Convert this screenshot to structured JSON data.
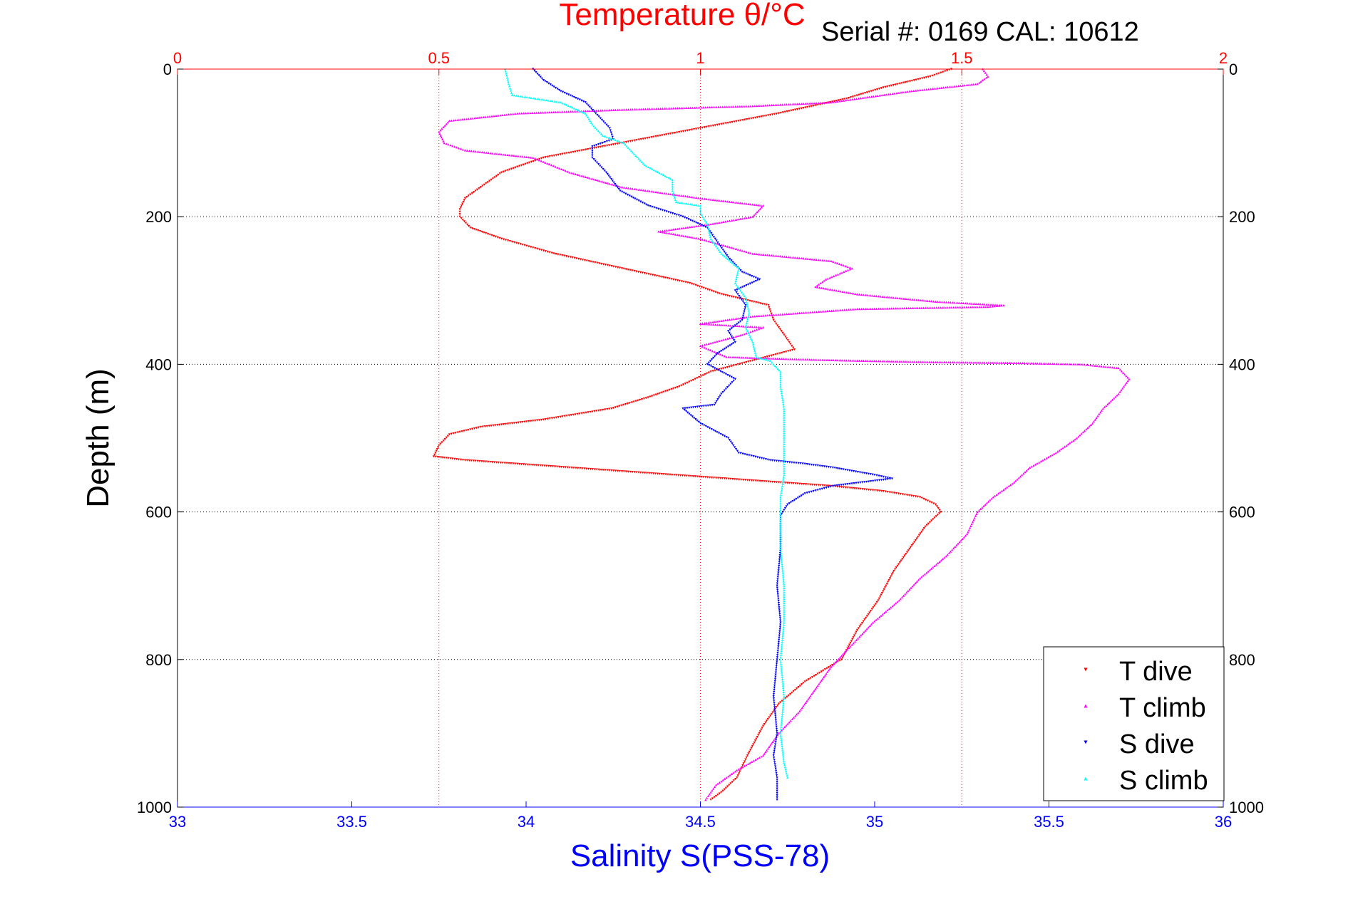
{
  "header": {
    "serial_text": "Serial #: 0169 CAL: 10612"
  },
  "colors": {
    "temp_dive": "#ff0000",
    "temp_climb": "#ff00ff",
    "sal_dive": "#0000ff",
    "sal_climb": "#00ffff",
    "temp_axis": "#ff0000",
    "sal_axis": "#0000ff",
    "grid_depth": "#000000",
    "grid_temp": "#ff0000"
  },
  "chart_data": {
    "type": "scatter",
    "title": "Temperature θ/°C",
    "xlabel": "Salinity S(PSS-78)",
    "ylabel": "Depth (m)",
    "temperature_axis": {
      "label": "Temperature θ/°C",
      "position": "top",
      "range": [
        0,
        2
      ],
      "ticks": [
        0,
        0.5,
        1,
        1.5,
        2
      ],
      "tick_labels": [
        "0",
        "0.5",
        "1",
        "1.5",
        "2"
      ]
    },
    "salinity_axis": {
      "label": "Salinity S(PSS-78)",
      "position": "bottom",
      "range": [
        33,
        36
      ],
      "ticks": [
        33,
        33.5,
        34,
        34.5,
        35,
        35.5,
        36
      ],
      "tick_labels": [
        "33",
        "33.5",
        "34",
        "34.5",
        "35",
        "35.5",
        "36"
      ]
    },
    "depth_axis": {
      "label": "Depth (m)",
      "range": [
        0,
        1000
      ],
      "reversed": true,
      "ticks": [
        0,
        200,
        400,
        600,
        800,
        1000
      ],
      "tick_labels": [
        "0",
        "200",
        "400",
        "600",
        "800",
        "1000"
      ]
    },
    "grid": {
      "depth_lines": "dotted",
      "temperature_lines": "dotted"
    },
    "legend": {
      "position": "bottom-right",
      "entries": [
        "T dive",
        "T climb",
        "S dive",
        "S climb"
      ]
    },
    "series": [
      {
        "name": "T dive",
        "axis": "temperature",
        "marker": "triangle-down",
        "points": [
          [
            1.48,
            0
          ],
          [
            1.44,
            10
          ],
          [
            1.35,
            25
          ],
          [
            1.28,
            40
          ],
          [
            1.15,
            60
          ],
          [
            1.0,
            80
          ],
          [
            0.85,
            100
          ],
          [
            0.7,
            120
          ],
          [
            0.62,
            140
          ],
          [
            0.58,
            160
          ],
          [
            0.55,
            175
          ],
          [
            0.54,
            190
          ],
          [
            0.54,
            200
          ],
          [
            0.56,
            215
          ],
          [
            0.62,
            230
          ],
          [
            0.72,
            250
          ],
          [
            0.85,
            270
          ],
          [
            0.98,
            290
          ],
          [
            1.04,
            305
          ],
          [
            1.13,
            320
          ],
          [
            1.14,
            340
          ],
          [
            1.16,
            360
          ],
          [
            1.18,
            380
          ],
          [
            1.1,
            395
          ],
          [
            1.02,
            410
          ],
          [
            0.96,
            430
          ],
          [
            0.9,
            445
          ],
          [
            0.83,
            460
          ],
          [
            0.7,
            475
          ],
          [
            0.58,
            485
          ],
          [
            0.52,
            495
          ],
          [
            0.5,
            510
          ],
          [
            0.49,
            525
          ],
          [
            0.55,
            530
          ],
          [
            0.65,
            535
          ],
          [
            0.75,
            540
          ],
          [
            0.85,
            545
          ],
          [
            0.95,
            550
          ],
          [
            1.05,
            555
          ],
          [
            1.15,
            560
          ],
          [
            1.25,
            565
          ],
          [
            1.35,
            572
          ],
          [
            1.42,
            580
          ],
          [
            1.45,
            590
          ],
          [
            1.46,
            600
          ],
          [
            1.43,
            620
          ],
          [
            1.4,
            650
          ],
          [
            1.37,
            680
          ],
          [
            1.34,
            720
          ],
          [
            1.3,
            760
          ],
          [
            1.27,
            800
          ],
          [
            1.2,
            830
          ],
          [
            1.15,
            860
          ],
          [
            1.12,
            890
          ],
          [
            1.09,
            930
          ],
          [
            1.07,
            960
          ],
          [
            1.04,
            980
          ],
          [
            1.02,
            990
          ]
        ]
      },
      {
        "name": "T climb",
        "axis": "temperature",
        "marker": "triangle-up",
        "points": [
          [
            1.01,
            990
          ],
          [
            1.03,
            970
          ],
          [
            1.07,
            950
          ],
          [
            1.12,
            930
          ],
          [
            1.15,
            900
          ],
          [
            1.19,
            870
          ],
          [
            1.22,
            840
          ],
          [
            1.25,
            810
          ],
          [
            1.29,
            780
          ],
          [
            1.33,
            750
          ],
          [
            1.38,
            720
          ],
          [
            1.42,
            690
          ],
          [
            1.47,
            660
          ],
          [
            1.51,
            630
          ],
          [
            1.53,
            600
          ],
          [
            1.56,
            580
          ],
          [
            1.6,
            560
          ],
          [
            1.63,
            540
          ],
          [
            1.68,
            520
          ],
          [
            1.72,
            500
          ],
          [
            1.75,
            480
          ],
          [
            1.77,
            460
          ],
          [
            1.8,
            440
          ],
          [
            1.82,
            420
          ],
          [
            1.8,
            405
          ],
          [
            1.73,
            400
          ],
          [
            1.6,
            398
          ],
          [
            1.45,
            397
          ],
          [
            1.3,
            395
          ],
          [
            1.18,
            393
          ],
          [
            1.05,
            390
          ],
          [
            1.0,
            375
          ],
          [
            1.08,
            360
          ],
          [
            1.12,
            350
          ],
          [
            1.0,
            345
          ],
          [
            1.1,
            335
          ],
          [
            1.3,
            325
          ],
          [
            1.55,
            322
          ],
          [
            1.58,
            320
          ],
          [
            1.45,
            315
          ],
          [
            1.3,
            305
          ],
          [
            1.22,
            295
          ],
          [
            1.24,
            285
          ],
          [
            1.29,
            270
          ],
          [
            1.25,
            260
          ],
          [
            1.1,
            250
          ],
          [
            1.0,
            230
          ],
          [
            0.92,
            220
          ],
          [
            1.02,
            210
          ],
          [
            1.1,
            200
          ],
          [
            1.12,
            185
          ],
          [
            1.0,
            175
          ],
          [
            0.85,
            160
          ],
          [
            0.8,
            150
          ],
          [
            0.75,
            140
          ],
          [
            0.68,
            120
          ],
          [
            0.55,
            110
          ],
          [
            0.51,
            100
          ],
          [
            0.5,
            85
          ],
          [
            0.52,
            70
          ],
          [
            0.65,
            60
          ],
          [
            0.85,
            55
          ],
          [
            1.1,
            50
          ],
          [
            1.25,
            45
          ],
          [
            1.4,
            30
          ],
          [
            1.53,
            20
          ],
          [
            1.55,
            10
          ],
          [
            1.54,
            0
          ]
        ]
      },
      {
        "name": "S dive",
        "axis": "salinity",
        "marker": "triangle-down",
        "points": [
          [
            34.02,
            0
          ],
          [
            34.05,
            15
          ],
          [
            34.1,
            30
          ],
          [
            34.17,
            45
          ],
          [
            34.2,
            60
          ],
          [
            34.24,
            80
          ],
          [
            34.25,
            95
          ],
          [
            34.19,
            105
          ],
          [
            34.19,
            120
          ],
          [
            34.23,
            140
          ],
          [
            34.27,
            165
          ],
          [
            34.35,
            185
          ],
          [
            34.45,
            200
          ],
          [
            34.52,
            215
          ],
          [
            34.55,
            235
          ],
          [
            34.58,
            255
          ],
          [
            34.62,
            275
          ],
          [
            34.67,
            285
          ],
          [
            34.6,
            300
          ],
          [
            34.63,
            320
          ],
          [
            34.62,
            340
          ],
          [
            34.58,
            355
          ],
          [
            34.6,
            370
          ],
          [
            34.55,
            385
          ],
          [
            34.52,
            400
          ],
          [
            34.6,
            420
          ],
          [
            34.56,
            440
          ],
          [
            34.54,
            455
          ],
          [
            34.45,
            460
          ],
          [
            34.5,
            480
          ],
          [
            34.58,
            500
          ],
          [
            34.61,
            520
          ],
          [
            34.7,
            530
          ],
          [
            34.8,
            535
          ],
          [
            34.88,
            540
          ],
          [
            34.94,
            545
          ],
          [
            35.0,
            550
          ],
          [
            35.05,
            555
          ],
          [
            34.88,
            565
          ],
          [
            34.8,
            575
          ],
          [
            34.75,
            590
          ],
          [
            34.73,
            605
          ],
          [
            34.73,
            650
          ],
          [
            34.72,
            700
          ],
          [
            34.73,
            750
          ],
          [
            34.72,
            800
          ],
          [
            34.71,
            850
          ],
          [
            34.72,
            900
          ],
          [
            34.71,
            930
          ],
          [
            34.72,
            960
          ],
          [
            34.72,
            990
          ]
        ]
      },
      {
        "name": "S climb",
        "axis": "salinity",
        "marker": "triangle-up",
        "points": [
          [
            34.75,
            960
          ],
          [
            34.74,
            940
          ],
          [
            34.73,
            900
          ],
          [
            34.74,
            850
          ],
          [
            34.73,
            800
          ],
          [
            34.74,
            750
          ],
          [
            34.74,
            700
          ],
          [
            34.73,
            650
          ],
          [
            34.73,
            600
          ],
          [
            34.73,
            580
          ],
          [
            34.74,
            550
          ],
          [
            34.74,
            520
          ],
          [
            34.74,
            490
          ],
          [
            34.74,
            460
          ],
          [
            34.73,
            430
          ],
          [
            34.73,
            410
          ],
          [
            34.71,
            400
          ],
          [
            34.7,
            395
          ],
          [
            34.66,
            390
          ],
          [
            34.65,
            370
          ],
          [
            34.63,
            350
          ],
          [
            34.64,
            330
          ],
          [
            34.63,
            310
          ],
          [
            34.6,
            290
          ],
          [
            34.61,
            270
          ],
          [
            34.56,
            250
          ],
          [
            34.53,
            230
          ],
          [
            34.52,
            210
          ],
          [
            34.5,
            195
          ],
          [
            34.5,
            185
          ],
          [
            34.43,
            180
          ],
          [
            34.42,
            165
          ],
          [
            34.42,
            150
          ],
          [
            34.34,
            130
          ],
          [
            34.31,
            115
          ],
          [
            34.28,
            100
          ],
          [
            34.22,
            90
          ],
          [
            34.19,
            75
          ],
          [
            34.17,
            60
          ],
          [
            34.1,
            45
          ],
          [
            33.96,
            35
          ],
          [
            33.95,
            20
          ],
          [
            33.94,
            0
          ]
        ]
      }
    ]
  }
}
